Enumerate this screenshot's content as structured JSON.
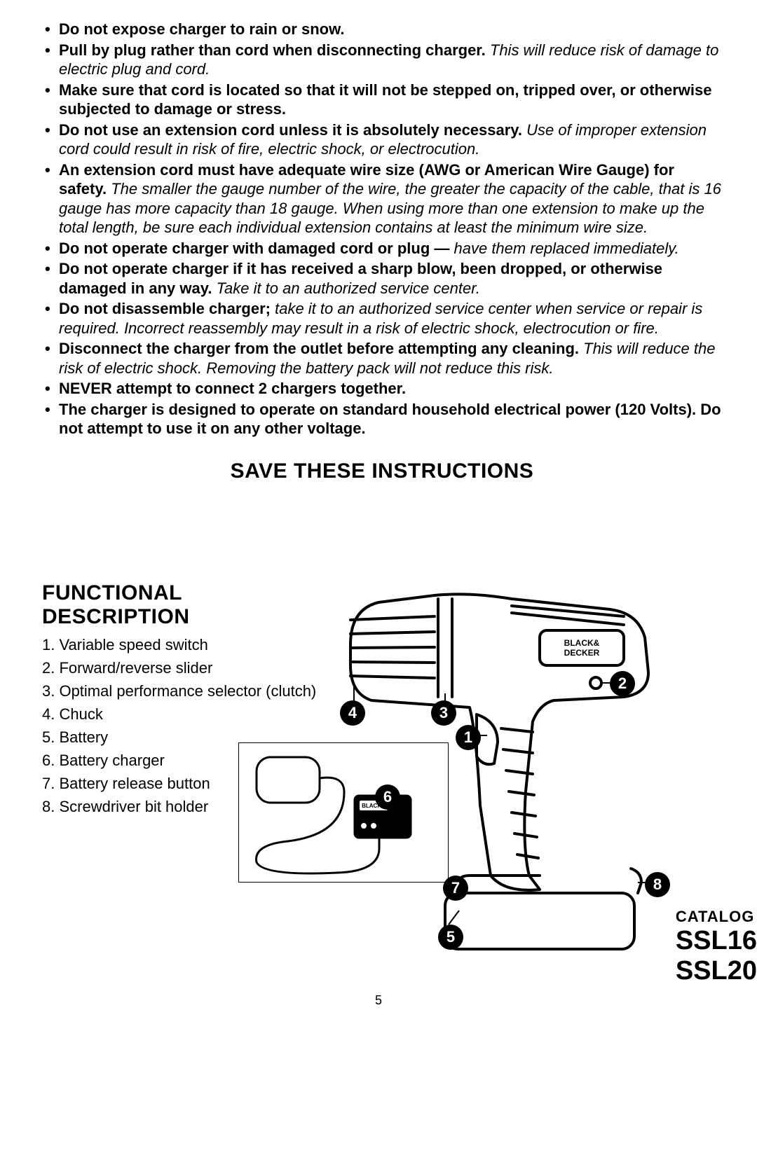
{
  "bullets": [
    {
      "bold": "Do not expose charger to rain or snow.",
      "italic": ""
    },
    {
      "bold": "Pull by plug rather than cord when disconnecting charger.",
      "italic": " This will reduce risk of damage to electric plug and cord."
    },
    {
      "bold": "Make sure that cord is located so that it will not be stepped on, tripped over, or otherwise subjected to damage or stress.",
      "italic": ""
    },
    {
      "bold": "Do not use an extension cord unless it is absolutely necessary.",
      "italic": " Use of improper extension cord could result in risk of fire, electric shock, or electrocution."
    },
    {
      "bold": "An extension cord must have adequate wire size (AWG or American Wire Gauge) for safety.",
      "italic": " The smaller the gauge number of the wire, the greater the capacity of the cable, that is 16 gauge has more capacity than 18 gauge. When using more than one extension to make up the total length, be sure each individual extension contains at least the minimum wire size."
    },
    {
      "bold": "Do not operate charger with damaged cord or plug —",
      "italic": " have them replaced immediately."
    },
    {
      "bold": "Do not operate charger if it has received a sharp blow, been dropped, or otherwise damaged in any way.",
      "italic": " Take it to an authorized service center."
    },
    {
      "bold": "Do not disassemble charger;",
      "italic": " take it to an authorized service center when service or repair is required. Incorrect reassembly may result in a risk of electric shock, electrocution or fire."
    },
    {
      "bold": "Disconnect the charger from the outlet before attempting any cleaning.",
      "italic": " This will reduce the risk of electric shock. Removing the battery pack will not reduce this risk."
    },
    {
      "bold": "NEVER attempt to connect 2 chargers together.",
      "italic": ""
    },
    {
      "bold": "The charger is designed to operate on standard household electrical power (120 Volts). Do not attempt to use it on any other voltage.",
      "italic": ""
    }
  ],
  "save_heading": "SAVE THESE INSTRUCTIONS",
  "func_title": "FUNCTIONAL DESCRIPTION",
  "func_items": [
    "1. Variable speed switch",
    "2. Forward/reverse slider",
    "3. Optimal performance selector (clutch)",
    "4. Chuck",
    "5. Battery",
    "6. Battery charger",
    "7. Battery release button",
    "8. Screwdriver bit holder"
  ],
  "callouts": {
    "c1": "1",
    "c2": "2",
    "c3": "3",
    "c4": "4",
    "c5": "5",
    "c6": "6",
    "c7": "7",
    "c8": "8"
  },
  "catalog_label": "CATALOG",
  "model1": "SSL16",
  "model2": "SSL20",
  "page_number": "5",
  "colors": {
    "text": "#000000",
    "bg": "#ffffff",
    "callout_bg": "#000000",
    "callout_fg": "#ffffff"
  }
}
